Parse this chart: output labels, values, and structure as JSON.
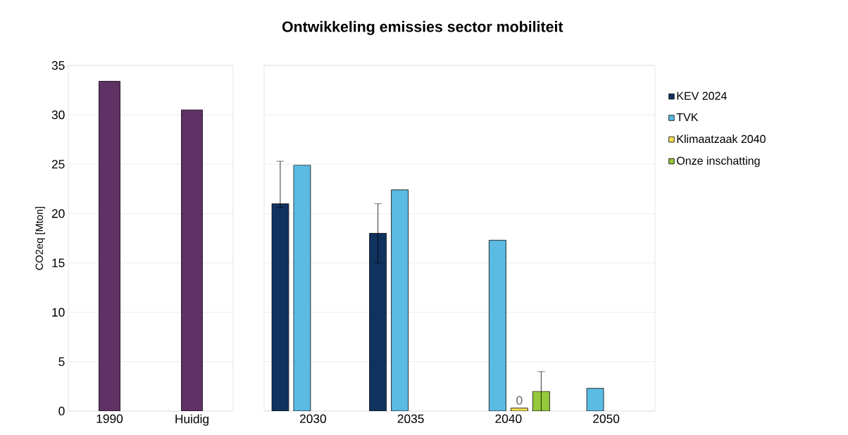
{
  "chart_data": [
    {
      "type": "bar",
      "ylabel": "CO2eq [Mton]",
      "categories": [
        "1990",
        "Huidig"
      ],
      "series": [
        {
          "color": "#5f3164",
          "values": [
            33.4,
            30.5
          ]
        }
      ],
      "ylim": [
        0,
        35
      ],
      "yticks": [
        0,
        5,
        10,
        15,
        20,
        25,
        30,
        35
      ],
      "grid": "y"
    },
    {
      "type": "bar",
      "title": "Ontwikkeling emissies sector mobiliteit",
      "categories": [
        "2030",
        "2035",
        "2040",
        "2050"
      ],
      "series": [
        {
          "name": "KEV 2024",
          "color": "#10325e",
          "values": [
            21,
            18,
            null,
            null
          ],
          "errors": [
            [
              20.6,
              25.3
            ],
            [
              15,
              21
            ],
            null,
            null
          ]
        },
        {
          "name": "TVK",
          "color": "#5bbbe3",
          "values": [
            24.9,
            22.4,
            17.3,
            2.3
          ]
        },
        {
          "name": "Klimaatzaak 2040",
          "color": "#f3df54",
          "values": [
            null,
            null,
            0.3,
            null
          ],
          "value_labels": [
            null,
            null,
            "0",
            null
          ]
        },
        {
          "name": "Onze inschatting",
          "color": "#95c83a",
          "values": [
            null,
            null,
            2,
            null
          ],
          "errors": [
            null,
            null,
            [
              0,
              4
            ],
            null
          ]
        }
      ],
      "ylim": [
        0,
        35
      ],
      "yticks": [
        0,
        5,
        10,
        15,
        20,
        25,
        30,
        35
      ],
      "tick_labels": "x",
      "grid": "y",
      "legend": "right"
    }
  ]
}
